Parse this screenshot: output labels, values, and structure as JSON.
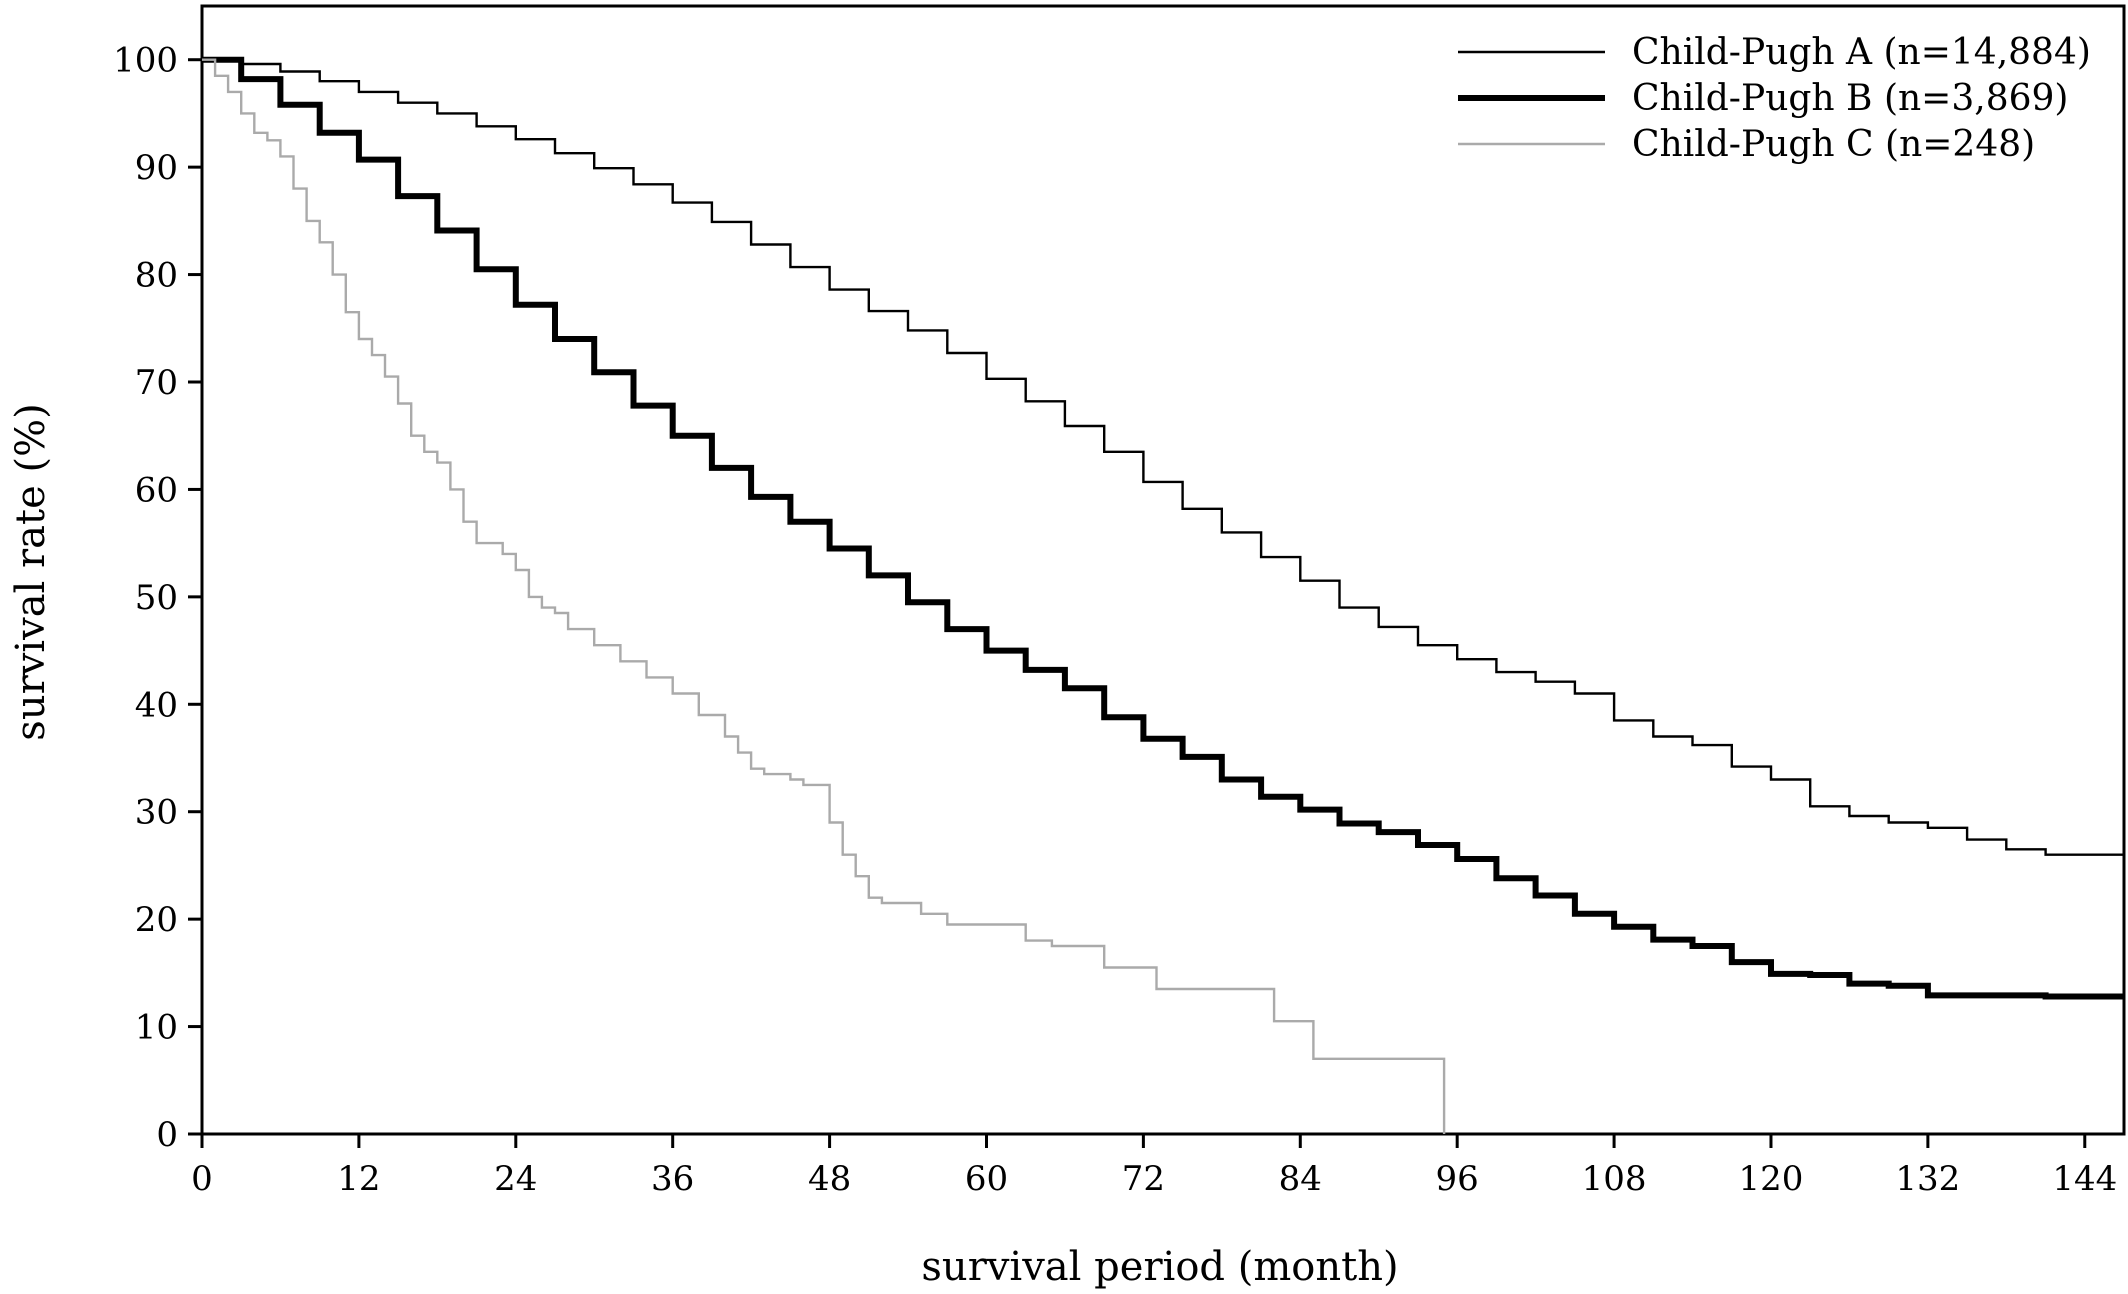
{
  "chart_data": {
    "type": "line",
    "xlabel": "survival period (month)",
    "ylabel": "survival rate (%)",
    "xlim": [
      0,
      147
    ],
    "ylim": [
      0,
      105
    ],
    "x_ticks": [
      0,
      12,
      24,
      36,
      48,
      60,
      72,
      84,
      96,
      108,
      120,
      132,
      144
    ],
    "y_ticks": [
      0,
      10,
      20,
      30,
      40,
      50,
      60,
      70,
      80,
      90,
      100
    ],
    "grid": false,
    "legend_position": "top-right",
    "series": [
      {
        "name": "Child-Pugh A (n=14,884)",
        "color": "#000000",
        "style": "thin",
        "x": [
          0,
          3,
          6,
          9,
          12,
          15,
          18,
          21,
          24,
          27,
          30,
          33,
          36,
          39,
          42,
          45,
          48,
          51,
          54,
          57,
          60,
          63,
          66,
          69,
          72,
          75,
          78,
          81,
          84,
          87,
          90,
          93,
          96,
          99,
          102,
          105,
          108,
          111,
          114,
          117,
          120,
          123,
          126,
          129,
          132,
          135,
          138,
          141,
          144,
          147
        ],
        "y": [
          100,
          99.6,
          98.9,
          98.0,
          97.0,
          96.0,
          95.0,
          93.8,
          92.6,
          91.3,
          89.9,
          88.4,
          86.7,
          84.9,
          82.8,
          80.7,
          78.6,
          76.6,
          74.8,
          72.7,
          70.3,
          68.2,
          65.9,
          63.5,
          60.7,
          58.2,
          56.0,
          53.7,
          51.5,
          49.0,
          47.2,
          45.5,
          44.2,
          43.0,
          42.1,
          41.0,
          38.5,
          37.0,
          36.2,
          34.2,
          33.0,
          30.5,
          29.6,
          29.0,
          28.5,
          27.4,
          26.5,
          26.0,
          26.0,
          26.0
        ]
      },
      {
        "name": "Child-Pugh B (n=3,869)",
        "color": "#000000",
        "style": "thick",
        "x": [
          0,
          3,
          6,
          9,
          12,
          15,
          18,
          21,
          24,
          27,
          30,
          33,
          36,
          39,
          42,
          45,
          48,
          51,
          54,
          57,
          60,
          63,
          66,
          69,
          72,
          75,
          78,
          81,
          84,
          87,
          90,
          93,
          96,
          99,
          102,
          105,
          108,
          111,
          114,
          117,
          120,
          123,
          126,
          129,
          132,
          135,
          138,
          141,
          144,
          147
        ],
        "y": [
          100,
          98.2,
          95.8,
          93.2,
          90.7,
          87.3,
          84.1,
          80.5,
          77.2,
          74.0,
          70.9,
          67.8,
          65.0,
          62.0,
          59.3,
          57.0,
          54.5,
          52.0,
          49.5,
          47.0,
          45.0,
          43.2,
          41.5,
          38.8,
          36.8,
          35.1,
          33.0,
          31.4,
          30.2,
          28.9,
          28.1,
          26.9,
          25.6,
          23.8,
          22.2,
          20.5,
          19.3,
          18.1,
          17.5,
          16.0,
          14.9,
          14.8,
          14.0,
          13.8,
          12.9,
          12.9,
          12.9,
          12.8,
          12.8,
          12.8
        ]
      },
      {
        "name": "Child-Pugh C (n=248)",
        "color": "#aaaaaa",
        "style": "thin",
        "x": [
          0,
          1,
          2,
          3,
          4,
          5,
          6,
          7,
          8,
          9,
          10,
          11,
          12,
          13,
          14,
          15,
          16,
          17,
          18,
          19,
          20,
          21,
          22,
          23,
          24,
          25,
          26,
          27,
          28,
          30,
          32,
          34,
          36,
          38,
          40,
          41,
          42,
          43,
          45,
          46,
          48,
          49,
          50,
          51,
          52,
          53,
          55,
          57,
          59,
          61,
          63,
          65,
          67,
          69,
          71,
          73,
          75,
          77,
          79,
          81,
          82,
          84,
          85,
          87,
          89,
          91,
          93,
          94,
          95
        ],
        "y": [
          100,
          98.5,
          97.0,
          95.0,
          93.2,
          92.5,
          91.0,
          88.0,
          85.0,
          83.0,
          80.0,
          76.5,
          74.0,
          72.5,
          70.5,
          68.0,
          65.0,
          63.5,
          62.5,
          60.0,
          57.0,
          55.0,
          55.0,
          54.0,
          52.5,
          50.0,
          49.0,
          48.5,
          47.0,
          45.5,
          44.0,
          42.5,
          41.0,
          39.0,
          37.0,
          35.5,
          34.0,
          33.5,
          33.0,
          32.5,
          29.0,
          26.0,
          24.0,
          22.0,
          21.5,
          21.5,
          20.5,
          19.5,
          19.5,
          19.5,
          18.0,
          17.5,
          17.5,
          15.5,
          15.5,
          13.5,
          13.5,
          13.5,
          13.5,
          13.5,
          10.5,
          10.5,
          7.0,
          7.0,
          7.0,
          7.0,
          7.0,
          7.0,
          0
        ]
      }
    ]
  }
}
